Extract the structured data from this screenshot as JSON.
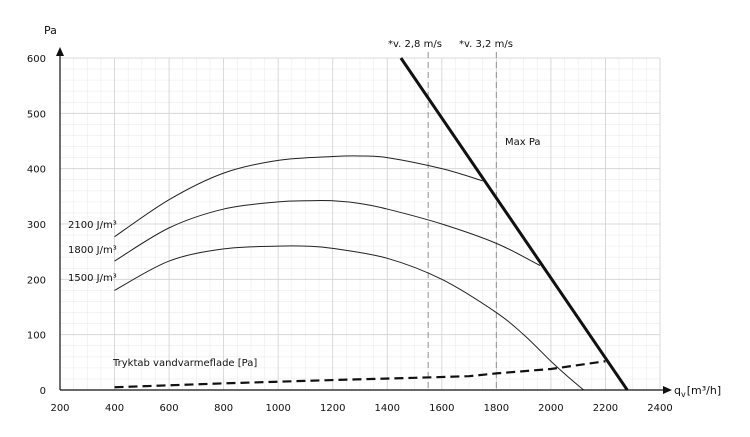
{
  "chart_data": {
    "type": "line",
    "title": "",
    "ylabel": "Pa",
    "xlabel": "q_v [m³/h]",
    "xlabel_parts": {
      "main": "q",
      "sub": "v",
      "unit": "[m³/h]"
    },
    "xlim": [
      200,
      2400
    ],
    "ylim": [
      0,
      600
    ],
    "x_ticks": [
      200,
      400,
      600,
      800,
      1000,
      1200,
      1400,
      1600,
      1800,
      2000,
      2200,
      2400
    ],
    "y_ticks": [
      0,
      100,
      200,
      300,
      400,
      500,
      600
    ],
    "grid": true,
    "minor_grid": {
      "x_step": 50,
      "y_step": 20
    },
    "series": [
      {
        "name": "2100 J/m³",
        "style": "solid-thin",
        "points": [
          [
            400,
            277
          ],
          [
            600,
            344
          ],
          [
            800,
            392
          ],
          [
            1000,
            415
          ],
          [
            1200,
            422
          ],
          [
            1300,
            423
          ],
          [
            1400,
            420
          ],
          [
            1600,
            400
          ],
          [
            1750,
            378
          ]
        ]
      },
      {
        "name": "1800 J/m³",
        "style": "solid-thin",
        "points": [
          [
            400,
            233
          ],
          [
            600,
            293
          ],
          [
            800,
            327
          ],
          [
            1000,
            340
          ],
          [
            1100,
            342
          ],
          [
            1200,
            342
          ],
          [
            1300,
            337
          ],
          [
            1400,
            327
          ],
          [
            1600,
            300
          ],
          [
            1800,
            265
          ],
          [
            1960,
            225
          ]
        ]
      },
      {
        "name": "1500 J/m³",
        "style": "solid-thin",
        "points": [
          [
            400,
            180
          ],
          [
            600,
            233
          ],
          [
            800,
            255
          ],
          [
            1000,
            260
          ],
          [
            1100,
            260
          ],
          [
            1200,
            256
          ],
          [
            1400,
            238
          ],
          [
            1600,
            200
          ],
          [
            1800,
            140
          ],
          [
            1900,
            100
          ],
          [
            2000,
            52
          ],
          [
            2060,
            25
          ],
          [
            2120,
            0
          ]
        ]
      },
      {
        "name": "Max Pa",
        "style": "solid-thick",
        "points": [
          [
            1450,
            600
          ],
          [
            2280,
            0
          ]
        ]
      },
      {
        "name": "Tryktab vandvarmeflade [Pa]",
        "style": "dashed-thick",
        "points": [
          [
            400,
            5
          ],
          [
            800,
            12
          ],
          [
            1200,
            18
          ],
          [
            1500,
            22
          ],
          [
            1700,
            25
          ],
          [
            1800,
            30
          ],
          [
            2000,
            38
          ],
          [
            2200,
            52
          ]
        ]
      }
    ],
    "reference_lines": [
      {
        "x": 1550,
        "label": "*v. 2,8 m/s",
        "style": "dashed-gray"
      },
      {
        "x": 1800,
        "label": "*v. 3,2 m/s",
        "style": "dashed-gray"
      }
    ],
    "annotations": [
      {
        "text": "2100 J/m³",
        "target": "2100 J/m³"
      },
      {
        "text": "1800 J/m³",
        "target": "1800 J/m³"
      },
      {
        "text": "1500 J/m³",
        "target": "1500 J/m³"
      },
      {
        "text": "Max Pa",
        "target": "Max Pa"
      },
      {
        "text": "Tryktab vandvarmeflade [Pa]",
        "target": "Tryktab vandvarmeflade [Pa]"
      }
    ],
    "colors": {
      "curve": "#222222",
      "maxline": "#111111",
      "ref": "#9a9a9a",
      "grid_major": "#d2d2d2",
      "grid_minor": "#ececec",
      "axis": "#111111"
    }
  }
}
